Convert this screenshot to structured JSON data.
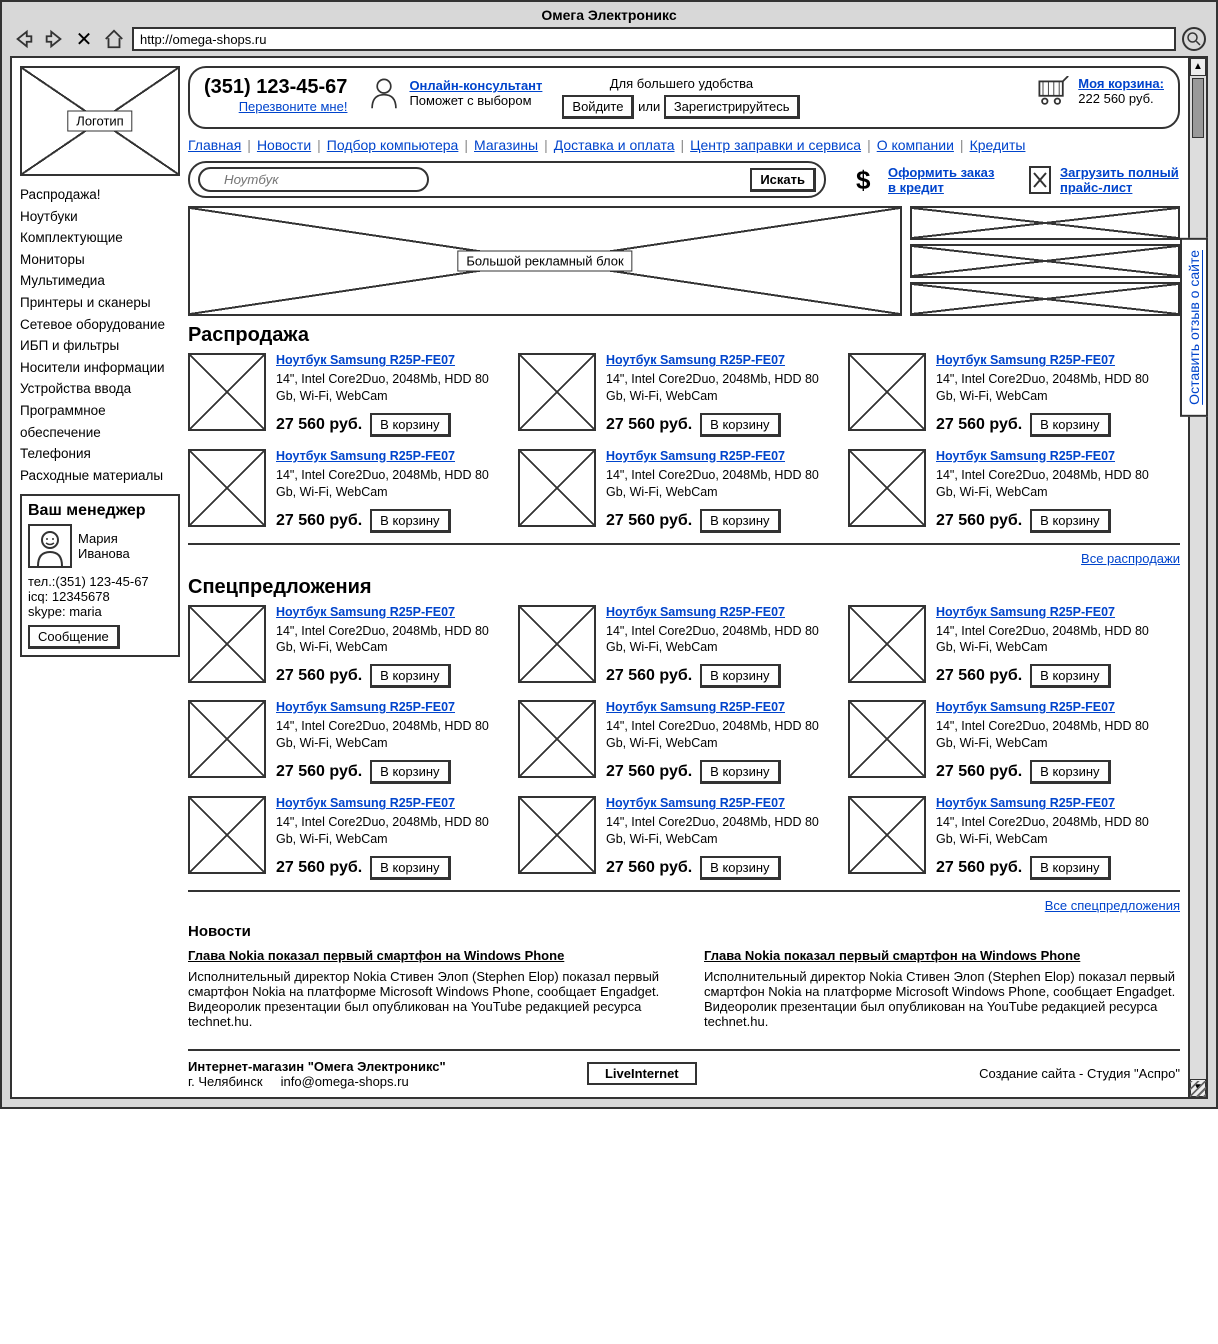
{
  "browser": {
    "title": "Омега Электроникс",
    "url": "http://omega-shops.ru"
  },
  "header": {
    "phone": "(351) 123-45-67",
    "callback": "Перезвоните мне!",
    "consultant_link": "Онлайн-консультант",
    "consultant_sub": "Поможет с выбором",
    "convenience": "Для большего удобства",
    "login_btn": "Войдите",
    "or": "или",
    "register_btn": "Зарегистрируйтесь",
    "cart_title": "Моя корзина:",
    "cart_sum": "222 560 руб."
  },
  "logo_label": "Логотип",
  "topnav": [
    "Главная",
    "Новости",
    "Подбор компьютера",
    "Магазины",
    "Доставка и оплата",
    "Центр заправки и сервиса",
    "О компании",
    "Кредиты"
  ],
  "search": {
    "placeholder": "Ноутбук",
    "button": "Искать",
    "credit_link": "Оформить заказ в кредит",
    "price_link": "Загрузить полный прайс-лист"
  },
  "categories": [
    "Распродажа!",
    "Ноутбуки",
    "Комплектующие",
    "Мониторы",
    "Мультимедиа",
    "Принтеры и сканеры",
    "Сетевое оборудование",
    "ИБП и фильтры",
    "Носители информации",
    "Устройства ввода",
    "Программное обеспечение",
    "Телефония",
    "Расходные материалы"
  ],
  "manager": {
    "title": "Ваш менеджер",
    "name": "Мария Иванова",
    "tel_label": "тел.:",
    "tel": "(351) 123-45-67",
    "icq_label": "icq:",
    "icq": "12345678",
    "skype_label": "skype:",
    "skype": "maria",
    "msg_btn": "Сообщение"
  },
  "big_promo_label": "Большой рекламный блок",
  "sections": {
    "sale_title": "Распродажа",
    "sale_more": "Все распродажи",
    "special_title": "Спецпредложения",
    "special_more": "Все спецпредложения"
  },
  "product": {
    "name": "Ноутбук Samsung R25P-FE07",
    "specs": "14\", Intel Core2Duo, 2048Mb, HDD 80 Gb, Wi-Fi, WebCam",
    "price": "27 560 руб.",
    "buy": "В корзину"
  },
  "news": {
    "heading": "Новости",
    "title": "Глава Nokia показал первый смартфон на Windows Phone",
    "body": "Исполнительный директор Nokia Стивен Элоп (Stephen Elop) показал первый смартфон Nokia на платформе Microsoft Windows Phone, сообщает Engadget. Видеоролик презентации был опубликован на YouTube редакцией ресурса technet.hu."
  },
  "footer": {
    "line1": "Интернет-магазин \"Омега Электроникс\"",
    "city": "г. Челябинск",
    "email": "info@omega-shops.ru",
    "counter": "LiveInternet",
    "credits": "Создание сайта - Студия \"Аспро\""
  },
  "feedback_tab": "Оставить отзыв о сайте"
}
